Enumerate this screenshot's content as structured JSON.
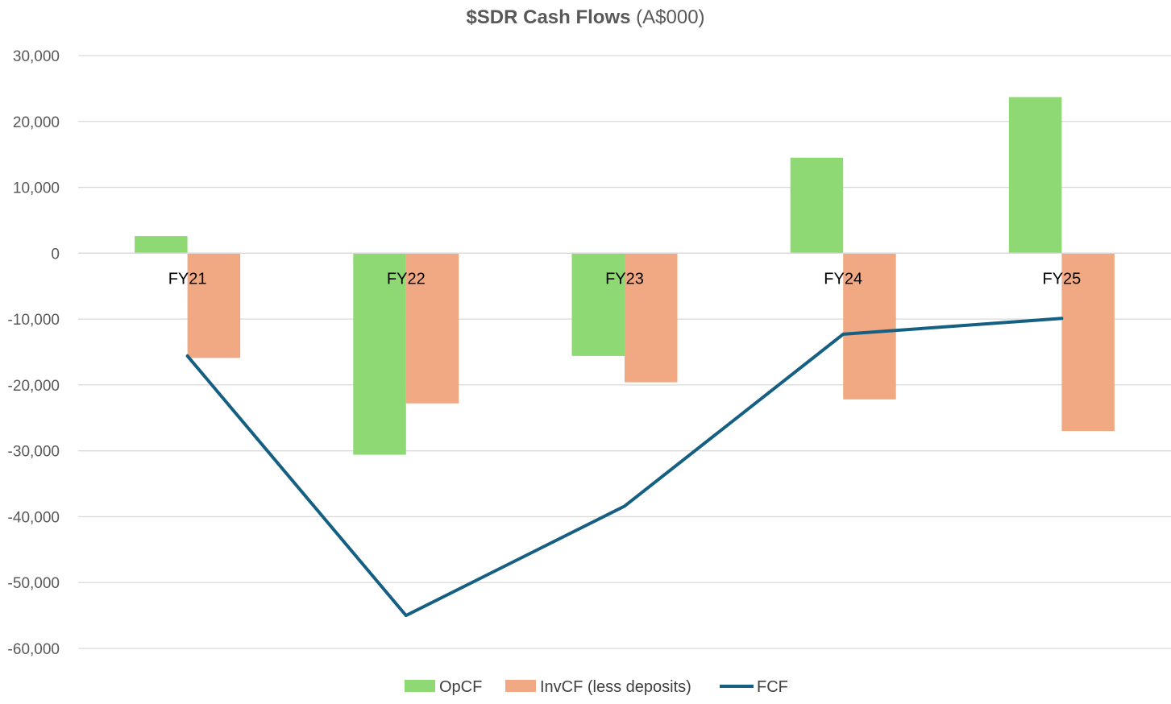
{
  "chart_data": {
    "type": "bar",
    "title": "$SDR Cash Flows",
    "subtitle": "(A$000)",
    "categories": [
      "FY21",
      "FY22",
      "FY23",
      "FY24",
      "FY25"
    ],
    "series": [
      {
        "name": "OpCF",
        "kind": "bar",
        "color": "#8ED973",
        "values": [
          2600,
          -30600,
          -15600,
          14500,
          23700
        ]
      },
      {
        "name": "InvCF (less deposits)",
        "kind": "bar",
        "color": "#F1A983",
        "values": [
          -15900,
          -22800,
          -19600,
          -22200,
          -27000
        ]
      },
      {
        "name": "FCF",
        "kind": "line",
        "color": "#156082",
        "values": [
          -15600,
          -55000,
          -38400,
          -12300,
          -9900
        ]
      }
    ],
    "ylim": [
      -60000,
      30000
    ],
    "yticks": [
      30000,
      20000,
      10000,
      0,
      -10000,
      -20000,
      -30000,
      -40000,
      -50000,
      -60000
    ],
    "ytick_labels": [
      "30,000",
      "20,000",
      "10,000",
      "0",
      "-10,000",
      "-20,000",
      "-30,000",
      "-40,000",
      "-50,000",
      "-60,000"
    ],
    "grid": true,
    "legend_position": "bottom"
  }
}
